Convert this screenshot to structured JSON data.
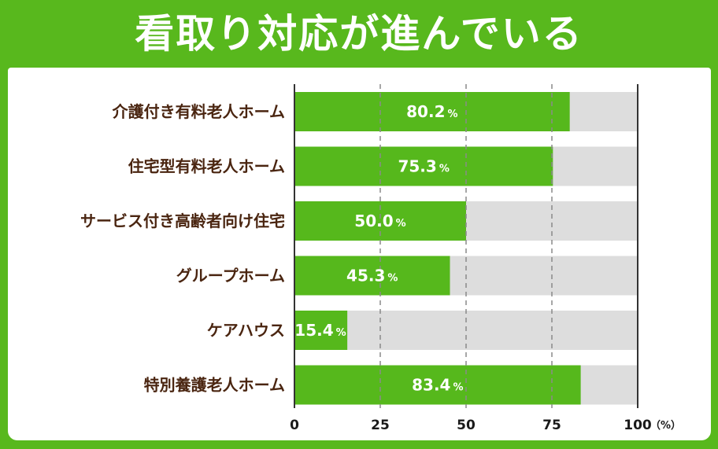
{
  "title": "看取り対応が進んでいる",
  "chart_data": {
    "type": "bar",
    "orientation": "horizontal",
    "categories": [
      "介護付き有料老人ホーム",
      "住宅型有料老人ホーム",
      "サービス付き高齢者向け住宅",
      "グループホーム",
      "ケアハウス",
      "特別養護老人ホーム"
    ],
    "values": [
      80.2,
      75.3,
      50.0,
      45.3,
      15.4,
      83.4
    ],
    "value_labels": [
      "80.2",
      "75.3",
      "50.0",
      "45.3",
      "15.4",
      "83.4"
    ],
    "value_suffix": "%",
    "xlim": [
      0,
      100
    ],
    "xticks": [
      "0",
      "25",
      "50",
      "75",
      "100"
    ],
    "unit_label": "（%）",
    "grid": "dashed vertical at 25, 50, 75",
    "colors": {
      "bar": "#56b81c",
      "track": "#dddddd",
      "background": "#58b81d"
    }
  }
}
